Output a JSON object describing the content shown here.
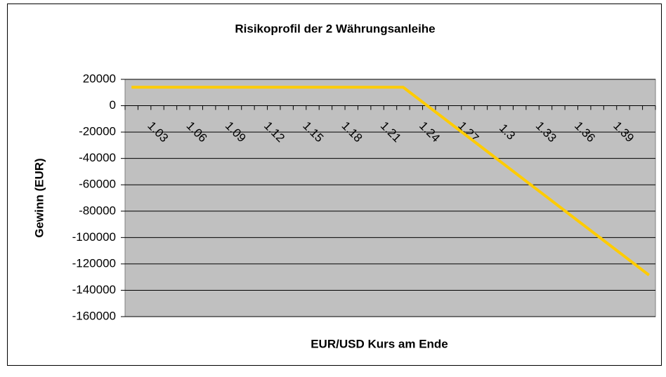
{
  "chart_data": {
    "type": "line",
    "title": "Risikoprofil der 2 Währungsanleihe",
    "x_label": "EUR/USD Kurs am Ende",
    "y_label": "Gewinn (EUR)",
    "categories": [
      null,
      null,
      "1.03",
      null,
      null,
      "1.06",
      null,
      null,
      "1.09",
      null,
      null,
      "1.12",
      null,
      null,
      "1.15",
      null,
      null,
      "1.18",
      null,
      null,
      "1.21",
      null,
      null,
      "1.24",
      null,
      null,
      "1.27",
      null,
      null,
      "1.3",
      null,
      null,
      "1.33",
      null,
      null,
      "1.36",
      null,
      null,
      "1.39",
      null,
      null
    ],
    "series": [
      {
        "name": "Gewinn",
        "color": "#ffcc00",
        "values": [
          14000,
          14000,
          14000,
          14000,
          14000,
          14000,
          14000,
          14000,
          14000,
          14000,
          14000,
          14000,
          14000,
          14000,
          14000,
          14000,
          14000,
          14000,
          14000,
          14000,
          14000,
          14000,
          6500,
          -1000,
          -8500,
          -16000,
          -23500,
          -31000,
          -38500,
          -46000,
          -53500,
          -61000,
          -68500,
          -76000,
          -83500,
          -91000,
          -98500,
          -106000,
          -113500,
          -121000,
          -128500
        ]
      }
    ],
    "ylim": [
      -160000,
      20000
    ],
    "yticks": [
      20000,
      0,
      -20000,
      -40000,
      -60000,
      -80000,
      -100000,
      -120000,
      -140000,
      -160000
    ],
    "grid": true,
    "plot_background": "#c0c0c0"
  }
}
